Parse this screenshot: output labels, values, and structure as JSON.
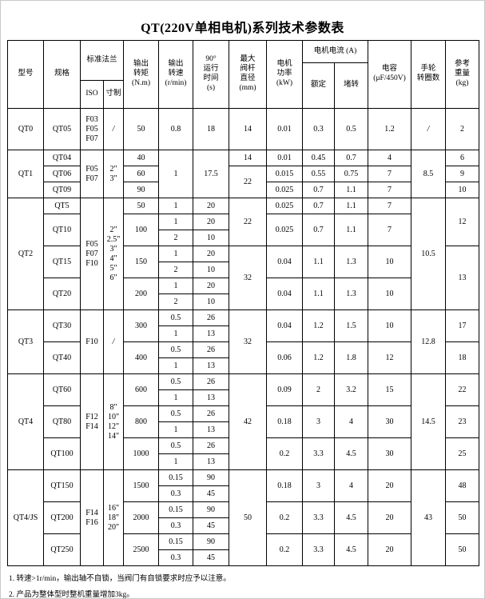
{
  "title": "QT(220V单相电机)系列技术参数表",
  "notes": [
    "1. 转速>1r/min，输出轴不自锁，当阀门有自锁要求时应予以注意。",
    "2. 产品为整体型时整机重量增加3kg。"
  ],
  "table": {
    "header_rows": [
      [
        {
          "t": "型号",
          "rs": 3,
          "n": "col-model"
        },
        {
          "t": "规格",
          "rs": 3,
          "n": "col-spec"
        },
        {
          "t": "标准法兰",
          "cs": 2,
          "rs": 2,
          "n": "col-flange"
        },
        {
          "t": "输出\n转矩\n(N.m)",
          "rs": 3,
          "n": "col-torque"
        },
        {
          "t": "输出\n转速\n(r/min)",
          "rs": 3,
          "n": "col-speed"
        },
        {
          "t": "90°\n运行\n时间\n(s)",
          "rs": 3,
          "n": "col-runtime"
        },
        {
          "t": "最大\n阀杆\n直径\n(mm)",
          "rs": 3,
          "n": "col-stem-diameter"
        },
        {
          "t": "电机\n功率\n(kW)",
          "rs": 3,
          "n": "col-motor-power"
        },
        {
          "t": "电机电流 (A)",
          "cs": 2,
          "n": "col-motor-current"
        },
        {
          "t": "电容\n(μF/450V)",
          "rs": 3,
          "n": "col-capacitor"
        },
        {
          "t": "手轮\n转圈数",
          "rs": 3,
          "n": "col-handwheel-turns"
        },
        {
          "t": "参考\n重量\n(kg)",
          "rs": 3,
          "n": "col-ref-weight"
        }
      ],
      [
        {
          "t": "额定",
          "rs": 2,
          "n": "col-rated"
        },
        {
          "t": "堵转",
          "rs": 2,
          "n": "col-stall"
        }
      ],
      [
        {
          "t": "ISO",
          "n": "col-iso"
        },
        {
          "t": "寸制",
          "n": "col-inch"
        }
      ]
    ],
    "rows": [
      [
        {
          "t": "QT0",
          "n": "model-cell"
        },
        {
          "t": "QT05",
          "n": "spec-cell"
        },
        {
          "t": "F03\nF05\nF07"
        },
        {
          "t": "/",
          "sl": true,
          "n": "slash-mark"
        },
        {
          "t": "50"
        },
        {
          "t": "0.8"
        },
        {
          "t": "18"
        },
        {
          "t": "14"
        },
        {
          "t": "0.01"
        },
        {
          "t": "0.3"
        },
        {
          "t": "0.5"
        },
        {
          "t": "1.2"
        },
        {
          "t": "/",
          "sl": true,
          "n": "slash-mark"
        },
        {
          "t": "2"
        }
      ],
      [
        {
          "t": "QT1",
          "rs": 3,
          "n": "model-cell"
        },
        {
          "t": "QT04",
          "n": "spec-cell"
        },
        {
          "t": "F05\nF07",
          "rs": 3
        },
        {
          "t": "2\"\n3\"",
          "rs": 3
        },
        {
          "t": "40"
        },
        {
          "t": "1",
          "rs": 3
        },
        {
          "t": "17.5",
          "rs": 3
        },
        {
          "t": "14"
        },
        {
          "t": "0.01"
        },
        {
          "t": "0.45"
        },
        {
          "t": "0.7"
        },
        {
          "t": "4"
        },
        {
          "t": "8.5",
          "rs": 3
        },
        {
          "t": "6"
        }
      ],
      [
        {
          "t": "QT06",
          "n": "spec-cell"
        },
        {
          "t": "60"
        },
        {
          "t": "22",
          "rs": 2
        },
        {
          "t": "0.015"
        },
        {
          "t": "0.55"
        },
        {
          "t": "0.75"
        },
        {
          "t": "7"
        },
        {
          "t": "9"
        }
      ],
      [
        {
          "t": "QT09",
          "n": "spec-cell"
        },
        {
          "t": "90"
        },
        {
          "t": "0.025"
        },
        {
          "t": "0.7"
        },
        {
          "t": "1.1"
        },
        {
          "t": "7"
        },
        {
          "t": "10"
        }
      ],
      [
        {
          "t": "QT2",
          "rs": 7,
          "n": "model-cell"
        },
        {
          "t": "QT5",
          "n": "spec-cell"
        },
        {
          "t": "F05\nF07\nF10",
          "rs": 7
        },
        {
          "t": "2\"\n2.5\"\n3\"\n4\"\n5\"\n6\"",
          "rs": 7
        },
        {
          "t": "50"
        },
        {
          "t": "1"
        },
        {
          "t": "20"
        },
        {
          "t": "22",
          "rs": 3
        },
        {
          "t": "0.025"
        },
        {
          "t": "0.7"
        },
        {
          "t": "1.1"
        },
        {
          "t": "7"
        },
        {
          "t": "10.5",
          "rs": 7
        },
        {
          "t": "12",
          "rs": 3
        }
      ],
      [
        {
          "t": "QT10",
          "rs": 2,
          "n": "spec-cell"
        },
        {
          "t": "100",
          "rs": 2
        },
        {
          "t": "1"
        },
        {
          "t": "20"
        },
        {
          "t": "0.025",
          "rs": 2
        },
        {
          "t": "0.7",
          "rs": 2
        },
        {
          "t": "1.1",
          "rs": 2
        },
        {
          "t": "7",
          "rs": 2
        }
      ],
      [
        {
          "t": "2"
        },
        {
          "t": "10"
        }
      ],
      [
        {
          "t": "QT15",
          "rs": 2,
          "n": "spec-cell"
        },
        {
          "t": "150",
          "rs": 2
        },
        {
          "t": "1"
        },
        {
          "t": "20"
        },
        {
          "t": "32",
          "rs": 4
        },
        {
          "t": "0.04",
          "rs": 2
        },
        {
          "t": "1.1",
          "rs": 2
        },
        {
          "t": "1.3",
          "rs": 2
        },
        {
          "t": "10",
          "rs": 2
        },
        {
          "t": "13",
          "rs": 4
        }
      ],
      [
        {
          "t": "2"
        },
        {
          "t": "10"
        }
      ],
      [
        {
          "t": "QT20",
          "rs": 2,
          "n": "spec-cell"
        },
        {
          "t": "200",
          "rs": 2
        },
        {
          "t": "1"
        },
        {
          "t": "20"
        },
        {
          "t": "0.04",
          "rs": 2
        },
        {
          "t": "1.1",
          "rs": 2
        },
        {
          "t": "1.3",
          "rs": 2
        },
        {
          "t": "10",
          "rs": 2
        }
      ],
      [
        {
          "t": "2"
        },
        {
          "t": "10"
        }
      ],
      [
        {
          "t": "QT3",
          "rs": 4,
          "n": "model-cell"
        },
        {
          "t": "QT30",
          "rs": 2,
          "n": "spec-cell"
        },
        {
          "t": "F10",
          "rs": 4
        },
        {
          "t": "/",
          "rs": 4,
          "sl": true,
          "n": "slash-mark"
        },
        {
          "t": "300",
          "rs": 2
        },
        {
          "t": "0.5"
        },
        {
          "t": "26"
        },
        {
          "t": "32",
          "rs": 4
        },
        {
          "t": "0.04",
          "rs": 2
        },
        {
          "t": "1.2",
          "rs": 2
        },
        {
          "t": "1.5",
          "rs": 2
        },
        {
          "t": "10",
          "rs": 2
        },
        {
          "t": "12.8",
          "rs": 4
        },
        {
          "t": "17",
          "rs": 2
        }
      ],
      [
        {
          "t": "1"
        },
        {
          "t": "13"
        }
      ],
      [
        {
          "t": "QT40",
          "rs": 2,
          "n": "spec-cell"
        },
        {
          "t": "400",
          "rs": 2
        },
        {
          "t": "0.5"
        },
        {
          "t": "26"
        },
        {
          "t": "0.06",
          "rs": 2
        },
        {
          "t": "1.2",
          "rs": 2
        },
        {
          "t": "1.8",
          "rs": 2
        },
        {
          "t": "12",
          "rs": 2
        },
        {
          "t": "18",
          "rs": 2
        }
      ],
      [
        {
          "t": "1"
        },
        {
          "t": "13"
        }
      ],
      [
        {
          "t": "QT4",
          "rs": 6,
          "n": "model-cell"
        },
        {
          "t": "QT60",
          "rs": 2,
          "n": "spec-cell"
        },
        {
          "t": "F12\nF14",
          "rs": 6
        },
        {
          "t": "8\"\n10\"\n12\"\n14\"",
          "rs": 6
        },
        {
          "t": "600",
          "rs": 2
        },
        {
          "t": "0.5"
        },
        {
          "t": "26"
        },
        {
          "t": "42",
          "rs": 6
        },
        {
          "t": "0.09",
          "rs": 2
        },
        {
          "t": "2",
          "rs": 2
        },
        {
          "t": "3.2",
          "rs": 2
        },
        {
          "t": "15",
          "rs": 2
        },
        {
          "t": "14.5",
          "rs": 6
        },
        {
          "t": "22",
          "rs": 2
        }
      ],
      [
        {
          "t": "1"
        },
        {
          "t": "13"
        }
      ],
      [
        {
          "t": "QT80",
          "rs": 2,
          "n": "spec-cell"
        },
        {
          "t": "800",
          "rs": 2
        },
        {
          "t": "0.5"
        },
        {
          "t": "26"
        },
        {
          "t": "0.18",
          "rs": 2
        },
        {
          "t": "3",
          "rs": 2
        },
        {
          "t": "4",
          "rs": 2
        },
        {
          "t": "30",
          "rs": 2
        },
        {
          "t": "23",
          "rs": 2
        }
      ],
      [
        {
          "t": "1"
        },
        {
          "t": "13"
        }
      ],
      [
        {
          "t": "QT100",
          "rs": 2,
          "n": "spec-cell"
        },
        {
          "t": "1000",
          "rs": 2
        },
        {
          "t": "0.5"
        },
        {
          "t": "26"
        },
        {
          "t": "0.2",
          "rs": 2
        },
        {
          "t": "3.3",
          "rs": 2
        },
        {
          "t": "4.5",
          "rs": 2
        },
        {
          "t": "30",
          "rs": 2
        },
        {
          "t": "25",
          "rs": 2
        }
      ],
      [
        {
          "t": "1"
        },
        {
          "t": "13"
        }
      ],
      [
        {
          "t": "QT4/JS",
          "rs": 6,
          "n": "model-cell"
        },
        {
          "t": "QT150",
          "rs": 2,
          "n": "spec-cell"
        },
        {
          "t": "F14\nF16",
          "rs": 6
        },
        {
          "t": "16\"\n18\"\n20\"",
          "rs": 6
        },
        {
          "t": "1500",
          "rs": 2
        },
        {
          "t": "0.15"
        },
        {
          "t": "90"
        },
        {
          "t": "50",
          "rs": 6
        },
        {
          "t": "0.18",
          "rs": 2
        },
        {
          "t": "3",
          "rs": 2
        },
        {
          "t": "4",
          "rs": 2
        },
        {
          "t": "20",
          "rs": 2
        },
        {
          "t": "43",
          "rs": 6
        },
        {
          "t": "48",
          "rs": 2
        }
      ],
      [
        {
          "t": "0.3"
        },
        {
          "t": "45"
        }
      ],
      [
        {
          "t": "QT200",
          "rs": 2,
          "n": "spec-cell"
        },
        {
          "t": "2000",
          "rs": 2
        },
        {
          "t": "0.15"
        },
        {
          "t": "90"
        },
        {
          "t": "0.2",
          "rs": 2
        },
        {
          "t": "3.3",
          "rs": 2
        },
        {
          "t": "4.5",
          "rs": 2
        },
        {
          "t": "20",
          "rs": 2
        },
        {
          "t": "50",
          "rs": 2
        }
      ],
      [
        {
          "t": "0.3"
        },
        {
          "t": "45"
        }
      ],
      [
        {
          "t": "QT250",
          "rs": 2,
          "n": "spec-cell"
        },
        {
          "t": "2500",
          "rs": 2
        },
        {
          "t": "0.15"
        },
        {
          "t": "90"
        },
        {
          "t": "0.2",
          "rs": 2
        },
        {
          "t": "3.3",
          "rs": 2
        },
        {
          "t": "4.5",
          "rs": 2
        },
        {
          "t": "20",
          "rs": 2
        },
        {
          "t": "50",
          "rs": 2
        }
      ],
      [
        {
          "t": "0.3"
        },
        {
          "t": "45"
        }
      ]
    ]
  }
}
